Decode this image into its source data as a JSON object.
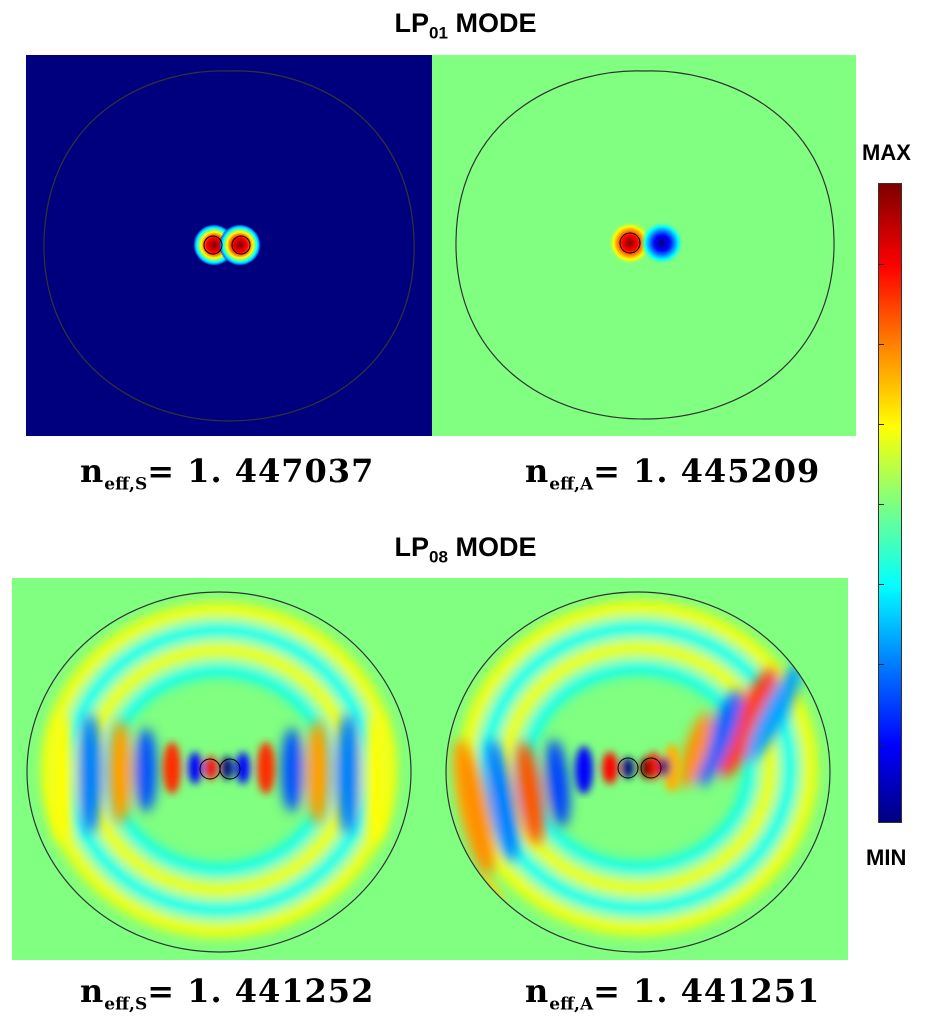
{
  "top_section": {
    "title_main": "LP",
    "title_sub": "01",
    "title_suffix": " MODE",
    "left": {
      "label_n": "n",
      "label_sub": "eff,S",
      "label_eq": "= ",
      "value": "1. 447037"
    },
    "right": {
      "label_n": "n",
      "label_sub": "eff,A",
      "label_eq": "= ",
      "value": "1. 445209"
    }
  },
  "bottom_section": {
    "title_main": "LP",
    "title_sub": "08",
    "title_suffix": " MODE",
    "left": {
      "label_n": "n",
      "label_sub": "eff,S",
      "label_eq": "= ",
      "value": "1. 441252"
    },
    "right": {
      "label_n": "n",
      "label_sub": "eff,A",
      "label_eq": "= ",
      "value": "1. 441251"
    }
  },
  "colorbar": {
    "max_label": "MAX",
    "min_label": "MIN",
    "colormap": "jet",
    "stops": [
      "#00007f",
      "#0000ff",
      "#007fff",
      "#00ffff",
      "#7fff7f",
      "#ffff00",
      "#ff7f00",
      "#ff0000",
      "#7f0000"
    ]
  },
  "colors": {
    "background_field": "#80ff80",
    "min_field": "#00007f"
  }
}
